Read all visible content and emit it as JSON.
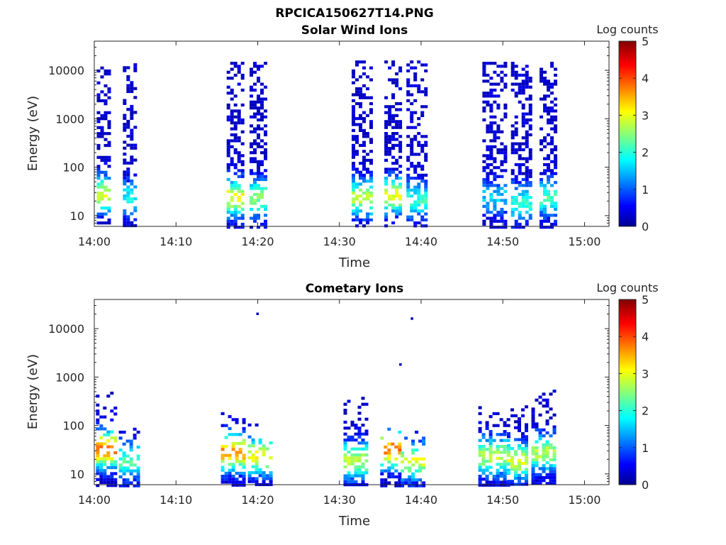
{
  "figure": {
    "title": "RPCICA150627T14.PNG"
  },
  "chart_data": [
    {
      "type": "heatmap",
      "title": "Solar Wind Ions",
      "xlabel": "Time",
      "ylabel": "Energy (eV)",
      "x_ticks": [
        "14:00",
        "14:10",
        "14:20",
        "14:30",
        "14:40",
        "14:50",
        "15:00"
      ],
      "y_ticks": [
        "10",
        "100",
        "1000",
        "10000"
      ],
      "y_scale": "log",
      "ylim": [
        6,
        40000
      ],
      "xlim_minutes_after_1400": [
        0,
        63
      ],
      "colorbar": {
        "label": "Log counts",
        "ticks": [
          "0",
          "1",
          "2",
          "3",
          "4",
          "5"
        ],
        "range": [
          0,
          5
        ],
        "colormap": "jet"
      },
      "bursts": [
        {
          "start_min": 0.3,
          "end_min": 2.0,
          "emin_ev": 6,
          "emax_ev": 12000,
          "peak_ev": 30,
          "peak_log_counts": 3.0
        },
        {
          "start_min": 3.5,
          "end_min": 5.2,
          "emin_ev": 6,
          "emax_ev": 14000,
          "peak_ev": 25,
          "peak_log_counts": 1.8
        },
        {
          "start_min": 16.2,
          "end_min": 18.0,
          "emin_ev": 6,
          "emax_ev": 15000,
          "peak_ev": 25,
          "peak_log_counts": 3.2
        },
        {
          "start_min": 19.0,
          "end_min": 20.9,
          "emin_ev": 6,
          "emax_ev": 15000,
          "peak_ev": 25,
          "peak_log_counts": 2.5
        },
        {
          "start_min": 31.5,
          "end_min": 33.8,
          "emin_ev": 6,
          "emax_ev": 16000,
          "peak_ev": 25,
          "peak_log_counts": 2.8
        },
        {
          "start_min": 35.5,
          "end_min": 37.4,
          "emin_ev": 6,
          "emax_ev": 16000,
          "peak_ev": 28,
          "peak_log_counts": 3.0
        },
        {
          "start_min": 38.2,
          "end_min": 40.5,
          "emin_ev": 6,
          "emax_ev": 16000,
          "peak_ev": 22,
          "peak_log_counts": 2.0
        },
        {
          "start_min": 47.5,
          "end_min": 50.2,
          "emin_ev": 6,
          "emax_ev": 15000,
          "peak_ev": 25,
          "peak_log_counts": 1.5
        },
        {
          "start_min": 51.0,
          "end_min": 53.5,
          "emin_ev": 6,
          "emax_ev": 15000,
          "peak_ev": 20,
          "peak_log_counts": 2.0
        },
        {
          "start_min": 54.5,
          "end_min": 56.5,
          "emin_ev": 6,
          "emax_ev": 15000,
          "peak_ev": 25,
          "peak_log_counts": 2.2
        }
      ]
    },
    {
      "type": "heatmap",
      "title": "Cometary Ions",
      "xlabel": "Time",
      "ylabel": "Energy (eV)",
      "x_ticks": [
        "14:00",
        "14:10",
        "14:20",
        "14:30",
        "14:40",
        "14:50",
        "15:00"
      ],
      "y_ticks": [
        "10",
        "100",
        "1000",
        "10000"
      ],
      "y_scale": "log",
      "ylim": [
        6,
        40000
      ],
      "xlim_minutes_after_1400": [
        0,
        63
      ],
      "colorbar": {
        "label": "Log counts",
        "ticks": [
          "0",
          "1",
          "2",
          "3",
          "4",
          "5"
        ],
        "range": [
          0,
          5
        ],
        "colormap": "jet"
      },
      "bursts": [
        {
          "start_min": 0.2,
          "end_min": 2.5,
          "emin_ev": 6,
          "emax_ev": 500,
          "peak_ev": 35,
          "peak_log_counts": 4.0
        },
        {
          "start_min": 3.0,
          "end_min": 5.5,
          "emin_ev": 6,
          "emax_ev": 90,
          "peak_ev": 20,
          "peak_log_counts": 2.2
        },
        {
          "start_min": 15.5,
          "end_min": 18.5,
          "emin_ev": 6,
          "emax_ev": 250,
          "peak_ev": 30,
          "peak_log_counts": 3.8
        },
        {
          "start_min": 18.8,
          "end_min": 21.5,
          "emin_ev": 6,
          "emax_ev": 110,
          "peak_ev": 25,
          "peak_log_counts": 3.2
        },
        {
          "start_min": 30.5,
          "end_min": 33.5,
          "emin_ev": 6,
          "emax_ev": 450,
          "peak_ev": 20,
          "peak_log_counts": 2.8
        },
        {
          "start_min": 35.0,
          "end_min": 37.5,
          "emin_ev": 6,
          "emax_ev": 90,
          "peak_ev": 35,
          "peak_log_counts": 4.0
        },
        {
          "start_min": 37.5,
          "end_min": 40.5,
          "emin_ev": 6,
          "emax_ev": 90,
          "peak_ev": 20,
          "peak_log_counts": 3.0
        },
        {
          "start_min": 47.0,
          "end_min": 50.5,
          "emin_ev": 6,
          "emax_ev": 250,
          "peak_ev": 25,
          "peak_log_counts": 2.8
        },
        {
          "start_min": 50.5,
          "end_min": 53.0,
          "emin_ev": 6,
          "emax_ev": 300,
          "peak_ev": 20,
          "peak_log_counts": 3.0
        },
        {
          "start_min": 53.5,
          "end_min": 56.5,
          "emin_ev": 6,
          "emax_ev": 550,
          "peak_ev": 30,
          "peak_log_counts": 2.8
        }
      ],
      "isolated_points": [
        {
          "min": 20.0,
          "ev": 20000,
          "log_counts": 0
        },
        {
          "min": 37.5,
          "ev": 1800,
          "log_counts": 0
        },
        {
          "min": 38.9,
          "ev": 16000,
          "log_counts": 0
        }
      ]
    }
  ]
}
